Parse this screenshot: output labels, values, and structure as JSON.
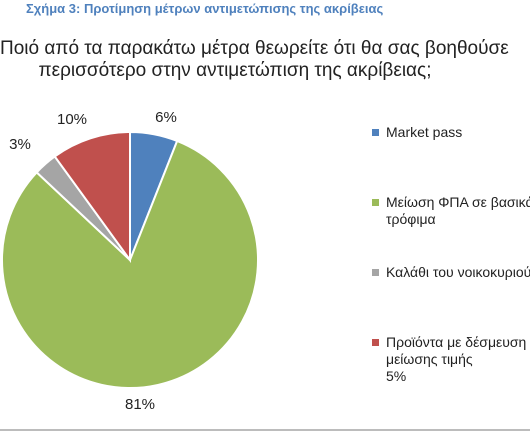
{
  "figure_caption": "Σχήμα 3: Προτίμηση μέτρων αντιμετώπισης της ακρίβειας",
  "chart_data": {
    "type": "pie",
    "title_lines": [
      "Ποιό από τα παρακάτω μέτρα θεωρείτε ότι θα σας βοηθούσε",
      "περισσότερο στην αντιμετώπιση της ακρίβειας;"
    ],
    "slices": [
      {
        "label_lines": [
          "Market pass"
        ],
        "value": 6,
        "data_label": "6%",
        "color": "#4f81bd"
      },
      {
        "label_lines": [
          "Μείωση ΦΠΑ σε βασικά",
          "τρόφιμα"
        ],
        "value": 81,
        "data_label": "81%",
        "color": "#9bbb59"
      },
      {
        "label_lines": [
          "Καλάθι του νοικοκυριού"
        ],
        "value": 3,
        "data_label": "3%",
        "color": "#a5a5a5"
      },
      {
        "label_lines": [
          "Προϊόντα με δέσμευση",
          "μείωσης τιμής",
          "5%"
        ],
        "value": 10,
        "data_label": "10%",
        "color": "#c0504d"
      }
    ],
    "legend_position": "right",
    "start_angle_deg": 0,
    "direction": "clockwise"
  }
}
